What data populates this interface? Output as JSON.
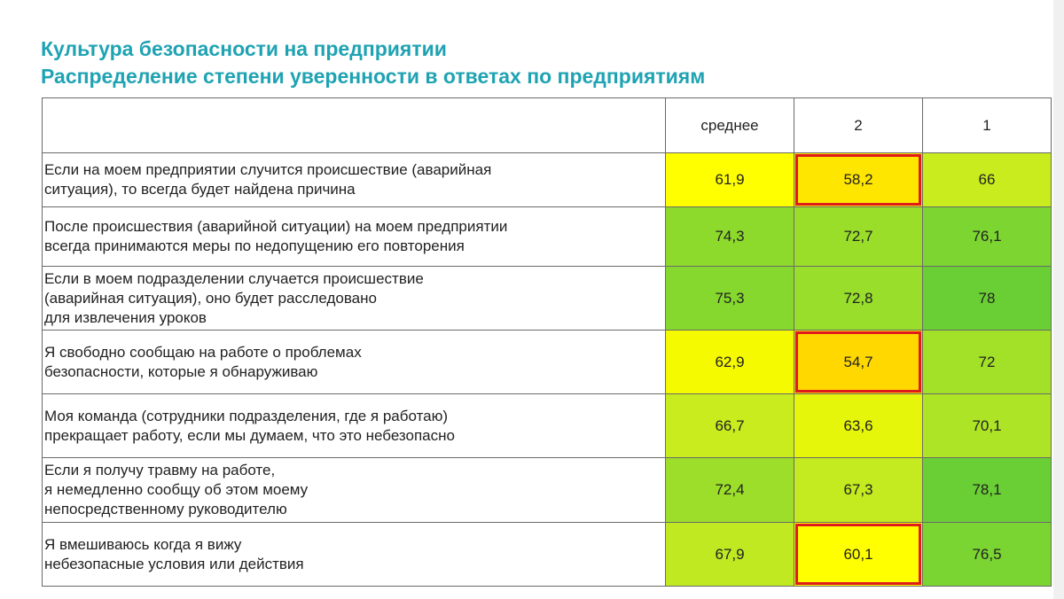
{
  "title": {
    "line1": "Культура безопасности на предприятии",
    "line2": "Распределение степени уверенности в ответах по предприятиям"
  },
  "chart_data": {
    "type": "heatmap",
    "title": "Культура безопасности на предприятии",
    "subtitle": "Распределение степени уверенности в ответах по предприятиям",
    "columns": [
      "среднее",
      "2",
      "1"
    ],
    "rows": [
      {
        "label": "Если на моем предприятии случится происшествие (аварийная\nситуация), то всегда будет найдена причина",
        "values": [
          "61,9",
          "58,2",
          "66"
        ],
        "colors": [
          "#FFFF00",
          "#FFE600",
          "#C8EC1E"
        ],
        "highlight": [
          false,
          true,
          false
        ]
      },
      {
        "label": "После происшествия (аварийной ситуации) на моем предприятии\nвсегда принимаются меры по недопущению его повторения",
        "values": [
          "74,3",
          "72,7",
          "76,1"
        ],
        "colors": [
          "#8EDA2C",
          "#9ADE2A",
          "#7CD530"
        ],
        "highlight": [
          false,
          false,
          false
        ]
      },
      {
        "label": "Если в моем подразделении случается происшествие\n(аварийная ситуация), оно будет расследовано\nдля извлечения уроков",
        "values": [
          "75,3",
          "72,8",
          "78"
        ],
        "colors": [
          "#86D82E",
          "#98DE2A",
          "#6ACF34"
        ],
        "highlight": [
          false,
          false,
          false
        ]
      },
      {
        "label": "Я свободно сообщаю на работе о проблемах\nбезопасности, которые я обнаруживаю",
        "values": [
          "62,9",
          "54,7",
          "72"
        ],
        "colors": [
          "#F6FA00",
          "#FFD800",
          "#A2E128"
        ],
        "highlight": [
          false,
          true,
          false
        ]
      },
      {
        "label": "Моя команда (сотрудники подразделения, где я работаю)\nпрекращает работу, если мы думаем, что это небезопасно",
        "values": [
          "66,7",
          "63,6",
          "70,1"
        ],
        "colors": [
          "#C8EC1E",
          "#E6F60A",
          "#AEE426"
        ],
        "highlight": [
          false,
          false,
          false
        ]
      },
      {
        "label": "Если я получу травму на работе,\nя немедленно сообщу об этом моему\nнепосредственному руководителю",
        "values": [
          "72,4",
          "67,3",
          "78,1"
        ],
        "colors": [
          "#9CDE2A",
          "#C4EA20",
          "#6ACF34"
        ],
        "highlight": [
          false,
          false,
          false
        ]
      },
      {
        "label": "Я вмешиваюсь когда я вижу\nнебезопасные условия или действия",
        "values": [
          "67,9",
          "60,1",
          "76,5"
        ],
        "colors": [
          "#C0E922",
          "#FFFF00",
          "#7AD431"
        ],
        "highlight": [
          false,
          true,
          false
        ]
      }
    ]
  }
}
